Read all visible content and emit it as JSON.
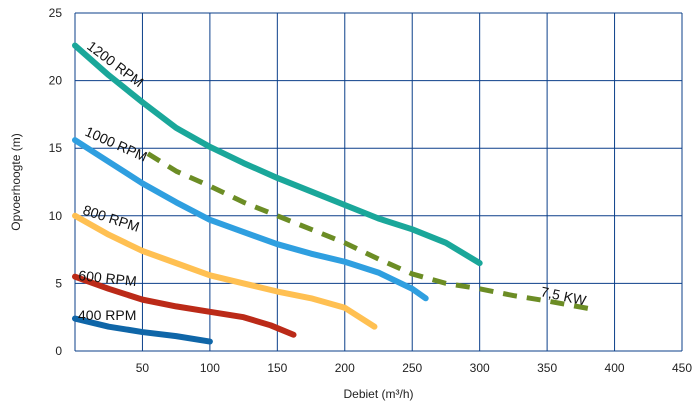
{
  "chart_data": {
    "type": "line",
    "title": "",
    "xlabel": "Debiet (m³/h)",
    "ylabel": "Opvoerhoogte (m)",
    "xlim": [
      0,
      450
    ],
    "ylim": [
      0,
      25
    ],
    "x_ticks": [
      50,
      100,
      150,
      200,
      250,
      300,
      350,
      400,
      450
    ],
    "y_ticks": [
      0,
      5,
      10,
      15,
      20,
      25
    ],
    "grid": true,
    "series": [
      {
        "name": "1200 RPM",
        "color": "#1aa79a",
        "style": "solid",
        "points": [
          [
            0,
            22.6
          ],
          [
            25,
            20.4
          ],
          [
            50,
            18.4
          ],
          [
            75,
            16.5
          ],
          [
            100,
            15.1
          ],
          [
            125,
            13.9
          ],
          [
            150,
            12.8
          ],
          [
            175,
            11.8
          ],
          [
            200,
            10.8
          ],
          [
            225,
            9.8
          ],
          [
            250,
            9.0
          ],
          [
            275,
            8.0
          ],
          [
            300,
            6.5
          ]
        ]
      },
      {
        "name": "1000 RPM",
        "color": "#2f9fe0",
        "style": "solid",
        "points": [
          [
            0,
            15.6
          ],
          [
            25,
            14.0
          ],
          [
            50,
            12.4
          ],
          [
            75,
            11.0
          ],
          [
            100,
            9.7
          ],
          [
            125,
            8.8
          ],
          [
            150,
            7.9
          ],
          [
            175,
            7.2
          ],
          [
            200,
            6.6
          ],
          [
            225,
            5.8
          ],
          [
            250,
            4.6
          ],
          [
            260,
            3.9
          ]
        ]
      },
      {
        "name": "800 RPM",
        "color": "#ffc052",
        "style": "solid",
        "points": [
          [
            0,
            10.0
          ],
          [
            25,
            8.6
          ],
          [
            50,
            7.4
          ],
          [
            75,
            6.5
          ],
          [
            100,
            5.6
          ],
          [
            125,
            5.0
          ],
          [
            150,
            4.4
          ],
          [
            175,
            3.9
          ],
          [
            200,
            3.2
          ],
          [
            222,
            1.8
          ]
        ]
      },
      {
        "name": "600 RPM",
        "color": "#bb2a18",
        "style": "solid",
        "points": [
          [
            0,
            5.5
          ],
          [
            25,
            4.6
          ],
          [
            50,
            3.8
          ],
          [
            75,
            3.3
          ],
          [
            100,
            2.9
          ],
          [
            125,
            2.5
          ],
          [
            145,
            1.9
          ],
          [
            162,
            1.2
          ]
        ]
      },
      {
        "name": "400 RPM",
        "color": "#0f66a8",
        "style": "solid",
        "points": [
          [
            0,
            2.4
          ],
          [
            25,
            1.8
          ],
          [
            50,
            1.4
          ],
          [
            75,
            1.1
          ],
          [
            100,
            0.7
          ]
        ]
      },
      {
        "name": "7,5 KW",
        "color": "#6c8d25",
        "style": "dashed",
        "points": [
          [
            54,
            14.6
          ],
          [
            75,
            13.3
          ],
          [
            100,
            12.2
          ],
          [
            125,
            11.0
          ],
          [
            150,
            10.0
          ],
          [
            175,
            9.0
          ],
          [
            200,
            8.0
          ],
          [
            225,
            6.8
          ],
          [
            250,
            5.7
          ],
          [
            275,
            5.0
          ],
          [
            300,
            4.6
          ],
          [
            325,
            4.1
          ],
          [
            350,
            3.7
          ],
          [
            383,
            3.1
          ]
        ]
      }
    ]
  }
}
